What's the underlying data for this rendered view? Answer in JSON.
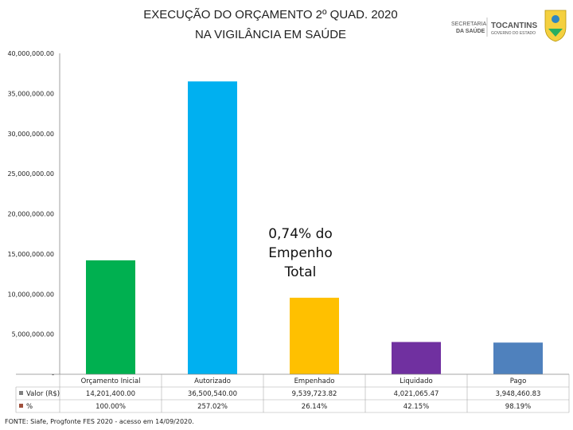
{
  "header": {
    "title_line1": "EXECUÇÃO DO ORÇAMENTO  2º QUAD. 2020",
    "title_line2": "NA VIGILÂNCIA EM SAÚDE"
  },
  "logos": {
    "secretaria_line1": "SECRETARIA",
    "secretaria_line2": "DA SAÚDE",
    "tocantins": "TOCANTINS",
    "governo": "GOVERNO DO ESTADO"
  },
  "annotation": {
    "line1": "0,74% do",
    "line2": "Empenho",
    "line3": "Total"
  },
  "source": "FONTE: Siafe, Progfonte FES 2020 - acesso em 14/09/2020.",
  "chart_data": {
    "type": "bar",
    "categories": [
      "Orçamento Inicial",
      "Autorizado",
      "Empenhado",
      "Liquidado",
      "Pago"
    ],
    "values": [
      14201400.0,
      36500540.0,
      9539723.82,
      4021065.47,
      3948460.83
    ],
    "colors": [
      "#00b050",
      "#00b0f0",
      "#ffc000",
      "#7030a0",
      "#4f81bd"
    ],
    "ylim": [
      0,
      40000000
    ],
    "yticks": [
      "-",
      "5,000,000.00",
      "10,000,000.00",
      "15,000,000.00",
      "20,000,000.00",
      "25,000,000.00",
      "30,000,000.00",
      "35,000,000.00",
      "40,000,000.00"
    ],
    "table": {
      "rows": [
        {
          "label": "Valor (R$)",
          "color": "#808080",
          "cells": [
            "14,201,400.00",
            "36,500,540.00",
            "9,539,723.82",
            "4,021,065.47",
            "3,948,460.83"
          ]
        },
        {
          "label": "%",
          "color": "#a0503c",
          "cells": [
            "100.00%",
            "257.02%",
            "26.14%",
            "42.15%",
            "98.19%"
          ]
        }
      ]
    }
  }
}
